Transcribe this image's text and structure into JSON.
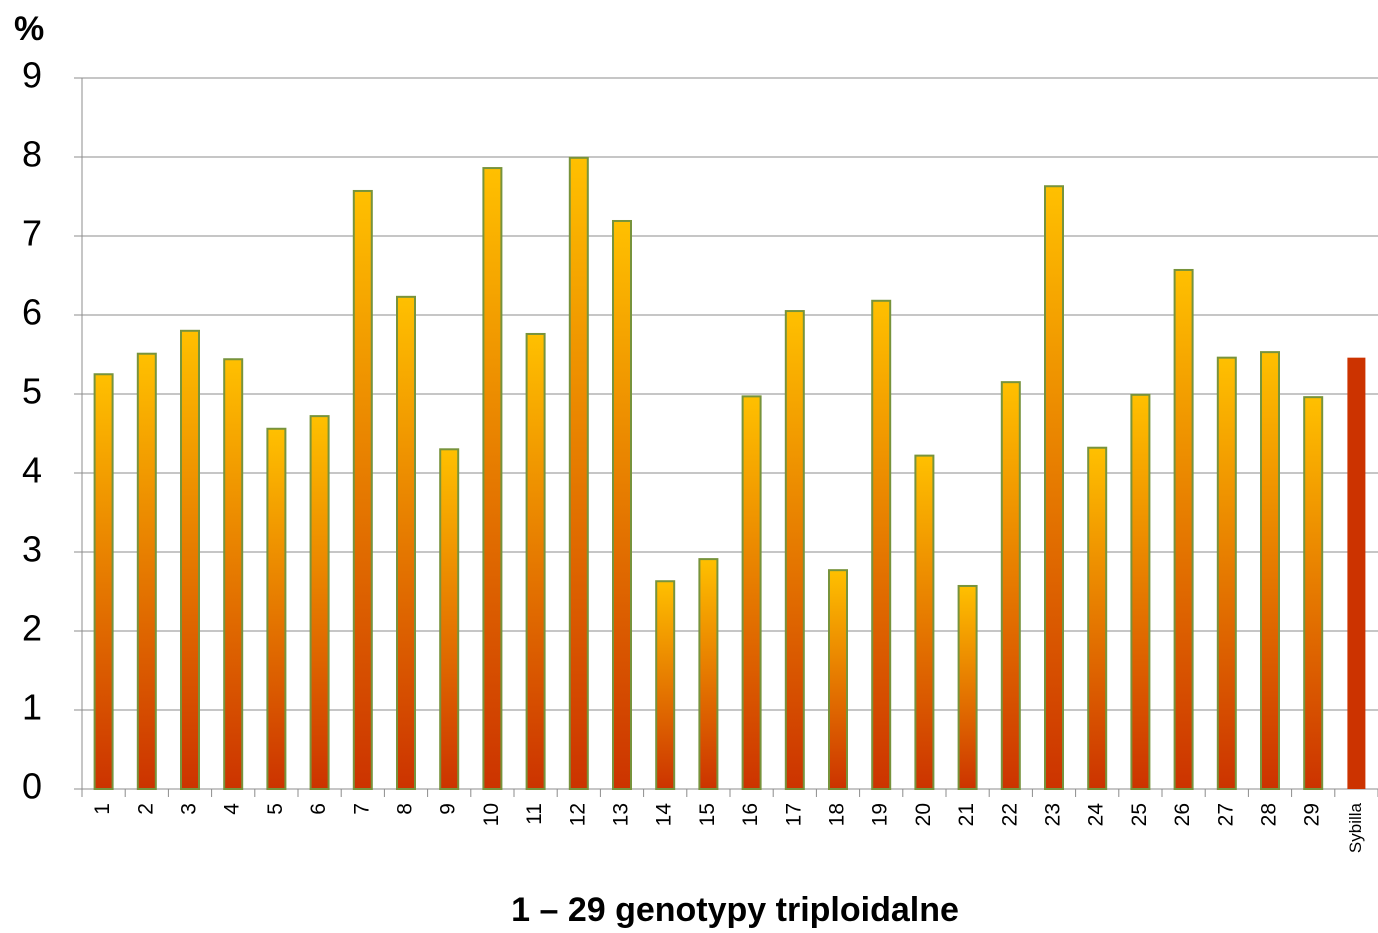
{
  "chart_data": {
    "type": "bar",
    "y_unit": "%",
    "xlabel": "1 – 29 genotypy triploidalne",
    "categories": [
      "1",
      "2",
      "3",
      "4",
      "5",
      "6",
      "7",
      "8",
      "9",
      "10",
      "11",
      "12",
      "13",
      "14",
      "15",
      "16",
      "17",
      "18",
      "19",
      "20",
      "21",
      "22",
      "23",
      "24",
      "25",
      "26",
      "27",
      "28",
      "29",
      "Sybilla"
    ],
    "values": [
      5.25,
      5.51,
      5.8,
      5.44,
      4.56,
      4.72,
      7.57,
      6.23,
      4.3,
      7.86,
      5.76,
      7.99,
      7.19,
      2.63,
      2.91,
      4.97,
      6.05,
      2.77,
      6.18,
      4.22,
      2.57,
      5.15,
      7.63,
      4.32,
      4.99,
      6.57,
      5.46,
      5.53,
      4.96,
      5.46
    ],
    "colors": [
      "#ffc000",
      "#ffc000",
      "#ffc000",
      "#ffc000",
      "#ffc000",
      "#ffc000",
      "#ffc000",
      "#ffc000",
      "#ffc000",
      "#ffc000",
      "#ffc000",
      "#ffc000",
      "#ffc000",
      "#ffc000",
      "#ffc000",
      "#ffc000",
      "#ffc000",
      "#ffc000",
      "#ffc000",
      "#ffc000",
      "#ffc000",
      "#ffc000",
      "#ffc000",
      "#ffc000",
      "#ffc000",
      "#ffc000",
      "#ffc000",
      "#ffc000",
      "#ffc000",
      "#cc3300"
    ],
    "gradient_bottom_color": "#cc3300",
    "edge_color": "#77933c",
    "ylim": [
      0,
      9
    ],
    "yticks": [
      0,
      1,
      2,
      3,
      4,
      5,
      6,
      7,
      8,
      9
    ],
    "grid": true
  }
}
